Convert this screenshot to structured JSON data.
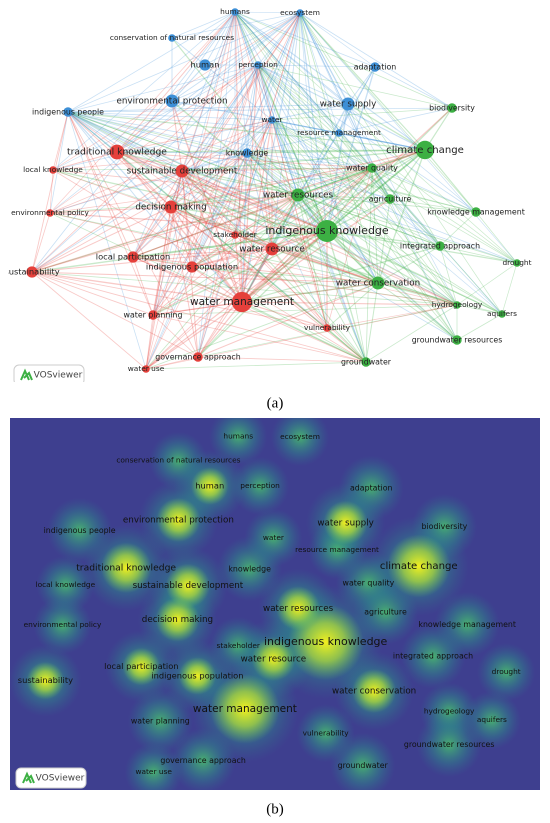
{
  "panel_a": {
    "caption": "(a)",
    "logo": "VOSviewer"
  },
  "panel_b": {
    "caption": "(b)",
    "logo": "VOSviewer"
  },
  "nodes": [
    {
      "label": "humans",
      "color": "#3d8fd6"
    },
    {
      "label": "ecosystem",
      "color": "#3d8fd6"
    },
    {
      "label": "conservation of natural resources",
      "color": "#3d8fd6"
    },
    {
      "label": "human",
      "color": "#3d8fd6"
    },
    {
      "label": "perception",
      "color": "#3d8fd6"
    },
    {
      "label": "adaptation",
      "color": "#3d8fd6"
    },
    {
      "label": "environmental protection",
      "color": "#3d8fd6"
    },
    {
      "label": "indigenous people",
      "color": "#3d8fd6"
    },
    {
      "label": "water",
      "color": "#3d8fd6"
    },
    {
      "label": "water supply",
      "color": "#3d8fd6"
    },
    {
      "label": "resource management",
      "color": "#3d8fd6"
    },
    {
      "label": "knowledge",
      "color": "#3d8fd6"
    },
    {
      "label": "biodiversity",
      "color": "#3cb043"
    },
    {
      "label": "climate change",
      "color": "#3cb043"
    },
    {
      "label": "water quality",
      "color": "#3cb043"
    },
    {
      "label": "water resources",
      "color": "#3cb043"
    },
    {
      "label": "agriculture",
      "color": "#3cb043"
    },
    {
      "label": "knowledge management",
      "color": "#3cb043"
    },
    {
      "label": "indigenous knowledge",
      "color": "#3cb043"
    },
    {
      "label": "integrated approach",
      "color": "#3cb043"
    },
    {
      "label": "drought",
      "color": "#3cb043"
    },
    {
      "label": "water conservation",
      "color": "#3cb043"
    },
    {
      "label": "hydrogeology",
      "color": "#3cb043"
    },
    {
      "label": "aquifers",
      "color": "#3cb043"
    },
    {
      "label": "groundwater resources",
      "color": "#3cb043"
    },
    {
      "label": "groundwater",
      "color": "#3cb043"
    },
    {
      "label": "traditional knowledge",
      "color": "#e5403b"
    },
    {
      "label": "local knowledge",
      "color": "#e5403b"
    },
    {
      "label": "sustainable development",
      "color": "#e5403b"
    },
    {
      "label": "decision making",
      "color": "#e5403b"
    },
    {
      "label": "environmental policy",
      "color": "#e5403b"
    },
    {
      "label": "stakeholder",
      "color": "#e5403b"
    },
    {
      "label": "water resource",
      "color": "#e5403b"
    },
    {
      "label": "local participation",
      "color": "#e5403b"
    },
    {
      "label": "indigenous population",
      "color": "#e5403b"
    },
    {
      "label": "sustainability",
      "color": "#e5403b"
    },
    {
      "label": "water management",
      "color": "#e5403b"
    },
    {
      "label": "water planning",
      "color": "#e5403b"
    },
    {
      "label": "vulnerability",
      "color": "#e5403b"
    },
    {
      "label": "governance approach",
      "color": "#e5403b"
    },
    {
      "label": "water use",
      "color": "#e5403b"
    }
  ]
}
